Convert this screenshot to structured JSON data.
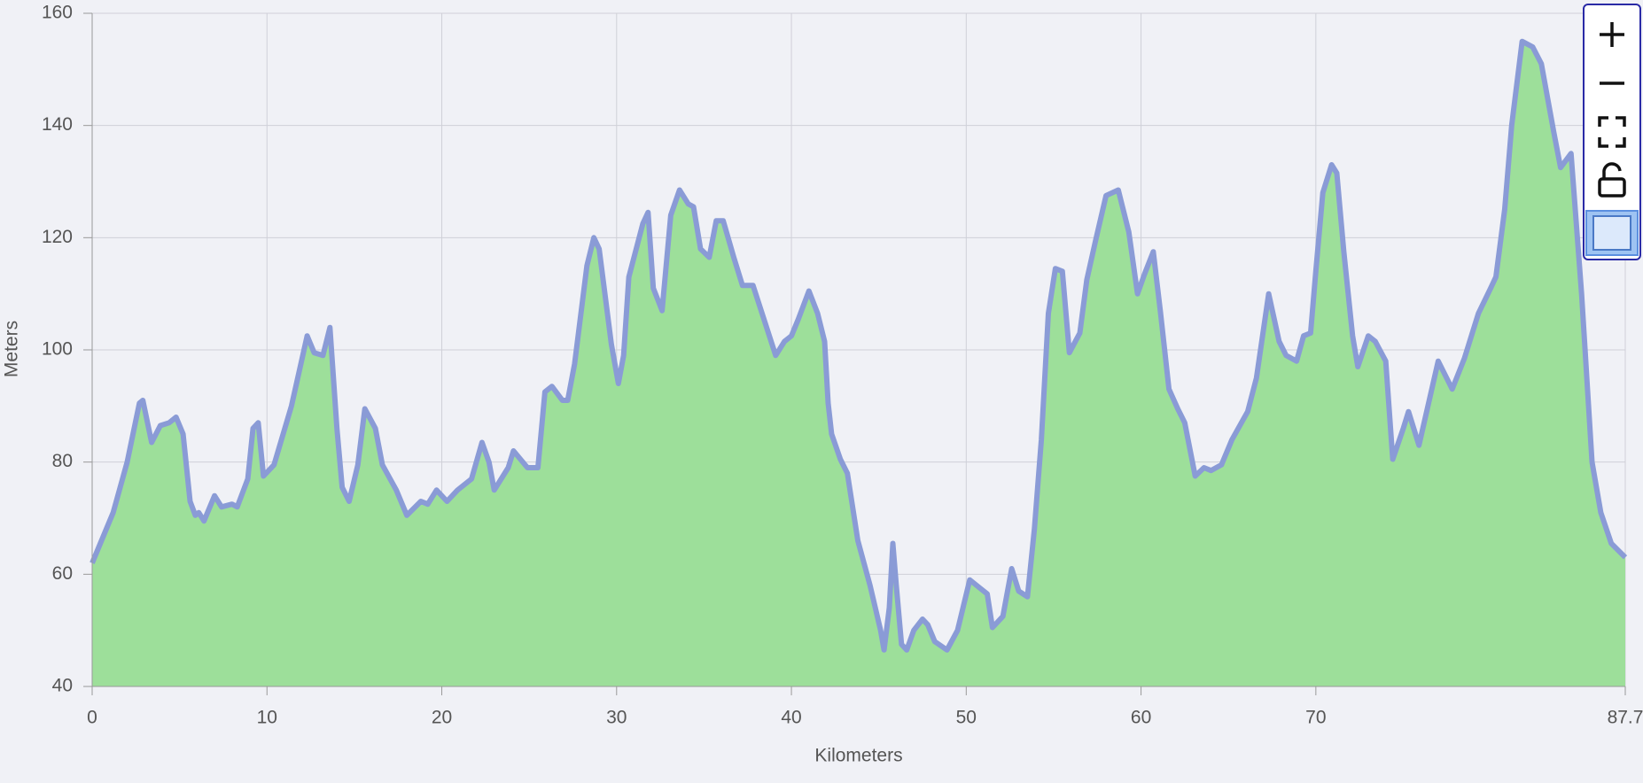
{
  "chart_data": {
    "type": "area",
    "xlabel": "Kilometers",
    "ylabel": "Meters",
    "xlim": [
      0,
      87.7
    ],
    "ylim": [
      40,
      160
    ],
    "xticks": [
      0,
      10,
      20,
      30,
      40,
      50,
      60,
      70,
      87.7
    ],
    "yticks": [
      40,
      60,
      80,
      100,
      120,
      140,
      160
    ],
    "grid": true,
    "fill_color": "#9ddf9a",
    "color": "#8a9bd6",
    "x": [
      0,
      0.4,
      1.2,
      2.0,
      2.7,
      2.9,
      3.4,
      3.9,
      4.4,
      4.8,
      5.2,
      5.6,
      5.9,
      6.1,
      6.4,
      7.0,
      7.4,
      8.0,
      8.3,
      8.9,
      9.2,
      9.5,
      9.8,
      10.4,
      11.4,
      12.3,
      12.7,
      13.2,
      13.6,
      14.0,
      14.3,
      14.7,
      15.2,
      15.6,
      16.2,
      16.6,
      17.4,
      18.0,
      18.8,
      19.2,
      19.7,
      20.3,
      20.9,
      21.7,
      22.3,
      22.7,
      23.0,
      23.8,
      24.1,
      24.9,
      25.5,
      25.9,
      26.3,
      26.9,
      27.2,
      27.6,
      28.3,
      28.7,
      29.0,
      29.7,
      30.1,
      30.4,
      30.7,
      31.5,
      31.8,
      32.1,
      32.6,
      33.1,
      33.6,
      34.1,
      34.4,
      34.8,
      35.3,
      35.7,
      36.1,
      36.7,
      37.2,
      37.8,
      39.1,
      39.6,
      40.0,
      40.4,
      41.0,
      41.5,
      41.9,
      42.1,
      42.3,
      42.8,
      43.2,
      43.8,
      44.5,
      45.1,
      45.3,
      45.6,
      45.8,
      46.0,
      46.3,
      46.6,
      47.0,
      47.5,
      47.8,
      48.2,
      48.9,
      49.5,
      50.2,
      50.8,
      51.2,
      51.5,
      52.1,
      52.6,
      53.0,
      53.5,
      53.9,
      54.3,
      54.7,
      55.1,
      55.5,
      55.9,
      56.5,
      56.9,
      57.4,
      58.0,
      58.7,
      59.3,
      59.8,
      60.2,
      60.7,
      61.1,
      61.6,
      62.1,
      62.5,
      63.1,
      63.6,
      64.0,
      64.6,
      65.2,
      66.1,
      66.6,
      67.3,
      67.9,
      68.3,
      68.9,
      69.3,
      69.7,
      70.0,
      70.4,
      70.9,
      71.2,
      71.6,
      72.1,
      72.4,
      73.0,
      73.4,
      74.0,
      74.4,
      75.0,
      75.3,
      75.9,
      77.0,
      77.8,
      78.5,
      79.3,
      80.0,
      80.3,
      80.8,
      81.2,
      81.8,
      82.4,
      82.9,
      83.6,
      84.0,
      84.6,
      85.2,
      85.8,
      86.3,
      86.9,
      87.7
    ],
    "values": [
      62,
      65,
      71,
      80,
      90.5,
      91,
      83.5,
      86.5,
      87,
      88,
      85,
      73,
      70.5,
      71,
      69.5,
      74,
      72,
      72.5,
      72,
      77,
      86,
      87,
      77.5,
      79.5,
      90,
      102.5,
      99.5,
      99,
      104,
      86,
      75.5,
      73,
      79.5,
      89.5,
      86,
      79.5,
      75,
      70.5,
      73,
      72.5,
      75,
      73,
      75,
      77,
      83.5,
      80,
      75,
      79,
      82,
      79,
      79,
      92.5,
      93.5,
      91,
      91,
      97.5,
      115,
      120,
      118,
      101,
      94,
      99,
      113,
      122.5,
      124.5,
      111,
      107,
      124,
      128.5,
      126,
      125.5,
      118,
      116.5,
      123,
      123,
      116.5,
      111.5,
      111.5,
      99,
      101.5,
      102.5,
      105.5,
      110.5,
      106.5,
      101.5,
      90.5,
      85,
      80.5,
      78,
      66,
      58,
      50,
      46.5,
      54,
      65.5,
      58,
      47.5,
      46.5,
      50,
      52,
      51,
      48,
      46.5,
      50,
      59,
      57.5,
      56.5,
      50.5,
      52.5,
      61,
      57,
      56,
      68,
      84,
      106.5,
      114.5,
      114,
      99.5,
      103,
      112.5,
      119.5,
      127.5,
      128.5,
      121,
      110,
      113.5,
      117.5,
      107,
      93,
      89.5,
      87,
      77.5,
      79,
      78.5,
      79.5,
      84,
      89,
      95,
      110,
      101.5,
      99,
      98,
      102.5,
      103,
      114,
      128,
      133,
      131.5,
      117.5,
      102.5,
      97,
      102.5,
      101.5,
      98,
      80.5,
      86,
      89,
      83,
      98,
      93,
      98.5,
      106.5,
      111,
      113,
      125,
      140,
      155,
      154,
      151,
      139,
      132.5,
      135,
      110,
      80,
      71,
      65.5,
      63
    ]
  }
}
